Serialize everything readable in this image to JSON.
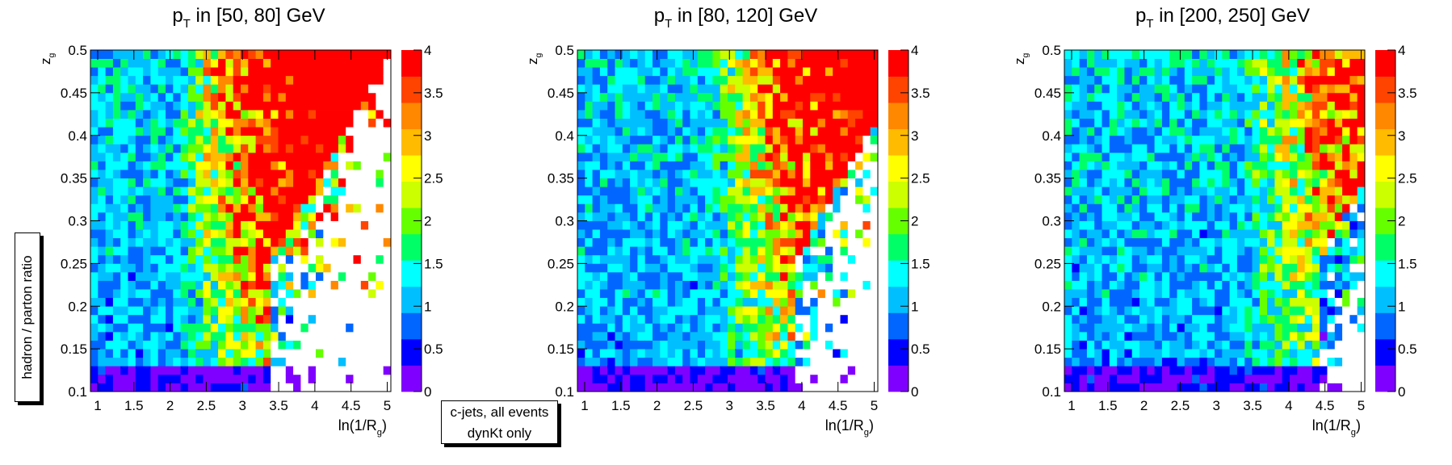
{
  "chart_data": [
    {
      "type": "heatmap",
      "title_main": "p",
      "title_sub": "T",
      "title_rest": " in [50, 80] GeV",
      "xlabel_main": "ln(1/R",
      "xlabel_sub": "g",
      "xlabel_close": ")",
      "ylabel_main": "z",
      "ylabel_sub": "g",
      "xlim": [
        0.9,
        5.05
      ],
      "ylim": [
        0.1,
        0.5
      ],
      "xticks": [
        "1",
        "1.5",
        "2",
        "2.5",
        "3",
        "3.5",
        "4",
        "4.5",
        "5"
      ],
      "yticks": [
        "0.1",
        "0.15",
        "0.2",
        "0.25",
        "0.3",
        "0.35",
        "0.4",
        "0.45",
        "0.5"
      ],
      "zlim": [
        0,
        4
      ],
      "zticks": [
        "0",
        "0.5",
        "1",
        "1.5",
        "2",
        "2.5",
        "3",
        "3.5",
        "4"
      ],
      "n_bins_x": 40,
      "n_bins_y": 40,
      "ridge_start": 2.1,
      "ridge_scale": 3.2,
      "empty_start": 3.4
    },
    {
      "type": "heatmap",
      "title_main": "p",
      "title_sub": "T",
      "title_rest": " in [80, 120] GeV",
      "xlabel_main": "ln(1/R",
      "xlabel_sub": "g",
      "xlabel_close": ")",
      "ylabel_main": "z",
      "ylabel_sub": "g",
      "xlim": [
        0.9,
        5.05
      ],
      "ylim": [
        0.1,
        0.5
      ],
      "xticks": [
        "1",
        "1.5",
        "2",
        "2.5",
        "3",
        "3.5",
        "4",
        "4.5",
        "5"
      ],
      "yticks": [
        "0.1",
        "0.15",
        "0.2",
        "0.25",
        "0.3",
        "0.35",
        "0.4",
        "0.45",
        "0.5"
      ],
      "zlim": [
        0,
        4
      ],
      "zticks": [
        "0",
        "0.5",
        "1",
        "1.5",
        "2",
        "2.5",
        "3",
        "3.5",
        "4"
      ],
      "n_bins_x": 40,
      "n_bins_y": 40,
      "ridge_start": 2.7,
      "ridge_scale": 2.6,
      "empty_start": 3.9
    },
    {
      "type": "heatmap",
      "title_main": "p",
      "title_sub": "T",
      "title_rest": " in [200, 250] GeV",
      "xlabel_main": "ln(1/R",
      "xlabel_sub": "g",
      "xlabel_close": ")",
      "ylabel_main": "z",
      "ylabel_sub": "g",
      "xlim": [
        0.9,
        5.05
      ],
      "ylim": [
        0.1,
        0.5
      ],
      "xticks": [
        "1",
        "1.5",
        "2",
        "2.5",
        "3",
        "3.5",
        "4",
        "4.5",
        "5"
      ],
      "yticks": [
        "0.1",
        "0.15",
        "0.2",
        "0.25",
        "0.3",
        "0.35",
        "0.4",
        "0.45",
        "0.5"
      ],
      "zlim": [
        0,
        4
      ],
      "zticks": [
        "0",
        "0.5",
        "1",
        "1.5",
        "2",
        "2.5",
        "3",
        "3.5",
        "4"
      ],
      "n_bins_x": 40,
      "n_bins_y": 40,
      "ridge_start": 3.3,
      "ridge_scale": 2.0,
      "empty_start": 4.4
    }
  ],
  "side_label": "hadron / parton ratio",
  "legend_box": {
    "line1": "c-jets, all events",
    "line2": "dynKt only"
  },
  "colors": {
    "palette": [
      "#7f00ff",
      "#0000ff",
      "#0066ff",
      "#00bfff",
      "#00ffff",
      "#00ff66",
      "#66ff00",
      "#ccff00",
      "#ffff00",
      "#ffbb00",
      "#ff8800",
      "#ff4400",
      "#ff0000"
    ],
    "empty": "#ffffff",
    "axis": "#000000"
  }
}
